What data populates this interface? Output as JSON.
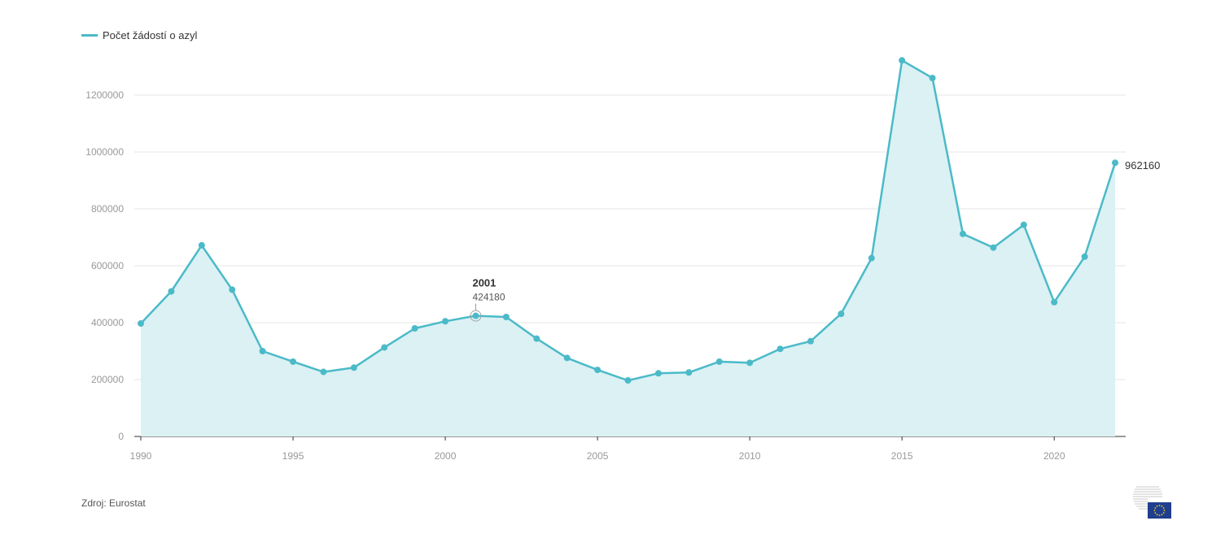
{
  "legend": {
    "label": "Počet žádostí o azyl",
    "color": "#4bbac8"
  },
  "source": "Zdroj: Eurostat",
  "tooltip": {
    "year": "2001",
    "value": "424180"
  },
  "end_label": "962160",
  "logo": {
    "name": "EU flag"
  },
  "colors": {
    "line": "#4bbac8",
    "fill": "#dbf1f4",
    "grid": "#e6e6e6",
    "axis_text": "#999999"
  },
  "chart_data": {
    "type": "area",
    "series": [
      {
        "name": "Počet žádostí o azyl",
        "x": [
          1990,
          1991,
          1992,
          1993,
          1994,
          1995,
          1996,
          1997,
          1998,
          1999,
          2000,
          2001,
          2002,
          2003,
          2004,
          2005,
          2006,
          2007,
          2008,
          2009,
          2010,
          2011,
          2012,
          2013,
          2014,
          2015,
          2016,
          2017,
          2018,
          2019,
          2020,
          2021,
          2022
        ],
        "values": [
          397000,
          510000,
          672000,
          516000,
          300000,
          263000,
          227000,
          242000,
          313000,
          380000,
          405000,
          424180,
          420000,
          344000,
          276000,
          234000,
          197000,
          222000,
          225000,
          263000,
          259000,
          308000,
          335000,
          431000,
          627000,
          1322000,
          1260000,
          712000,
          664000,
          744000,
          472000,
          632000,
          962160
        ]
      }
    ],
    "xticks": [
      "1990",
      "1995",
      "2000",
      "2005",
      "2010",
      "2015",
      "2020"
    ],
    "yticks": [
      "0",
      "200000",
      "400000",
      "600000",
      "800000",
      "1000000",
      "1200000"
    ],
    "xlim": [
      1990,
      2022
    ],
    "ylim": [
      0,
      1320000
    ],
    "grid": true,
    "legend_position": "top-left",
    "xlabel": "",
    "ylabel": ""
  }
}
